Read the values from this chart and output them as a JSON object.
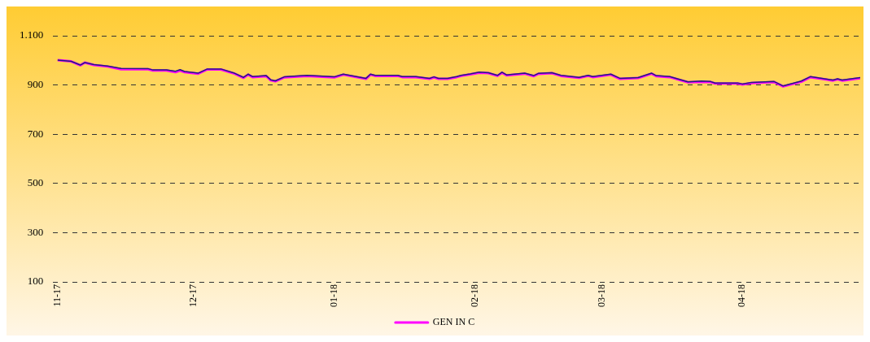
{
  "chart_data": {
    "type": "line",
    "x": [
      "2017-11-01",
      "2017-11-04",
      "2017-11-06",
      "2017-11-07",
      "2017-11-09",
      "2017-11-12",
      "2017-11-15",
      "2017-11-21",
      "2017-11-22",
      "2017-11-25",
      "2017-11-27",
      "2017-11-28",
      "2017-11-29",
      "2017-12-02",
      "2017-12-04",
      "2017-12-07",
      "2017-12-10",
      "2017-12-12",
      "2017-12-13",
      "2017-12-14",
      "2017-12-17",
      "2017-12-18",
      "2017-12-19",
      "2017-12-21",
      "2017-12-26",
      "2018-01-01",
      "2018-01-03",
      "2018-01-08",
      "2018-01-09",
      "2018-01-10",
      "2018-01-15",
      "2018-01-16",
      "2018-01-19",
      "2018-01-22",
      "2018-01-23",
      "2018-01-24",
      "2018-01-26",
      "2018-01-28",
      "2018-01-29",
      "2018-01-31",
      "2018-02-02",
      "2018-02-04",
      "2018-02-06",
      "2018-02-07",
      "2018-02-08",
      "2018-02-12",
      "2018-02-14",
      "2018-02-15",
      "2018-02-18",
      "2018-02-20",
      "2018-02-24",
      "2018-02-26",
      "2018-02-27",
      "2018-03-03",
      "2018-03-05",
      "2018-03-09",
      "2018-03-12",
      "2018-03-13",
      "2018-03-16",
      "2018-03-20",
      "2018-03-23",
      "2018-03-25",
      "2018-03-26",
      "2018-03-31",
      "2018-04-01",
      "2018-04-03",
      "2018-04-08",
      "2018-04-10",
      "2018-04-14",
      "2018-04-16",
      "2018-04-21",
      "2018-04-22",
      "2018-04-23",
      "2018-04-27"
    ],
    "series": [
      {
        "color": "#1f1f7a",
        "values": [
          1001,
          996,
          981,
          991,
          983,
          977,
          967,
          966,
          961,
          961,
          956,
          962,
          955,
          948,
          965,
          965,
          948,
          931,
          944,
          934,
          938,
          921,
          917,
          933,
          939,
          933,
          944,
          927,
          944,
          939,
          939,
          934,
          934,
          927,
          933,
          927,
          927,
          934,
          939,
          945,
          952,
          950,
          939,
          952,
          941,
          948,
          938,
          947,
          950,
          939,
          931,
          939,
          934,
          944,
          927,
          930,
          948,
          938,
          934,
          913,
          916,
          914,
          908,
          908,
          904,
          910,
          914,
          896,
          916,
          934,
          920,
          925,
          920,
          930
        ]
      },
      {
        "name": "GEN IN C",
        "color": "#ff00ff",
        "values": [
          1001,
          996,
          980,
          991,
          981,
          975,
          964,
          964,
          959,
          959,
          952,
          959,
          952,
          946,
          963,
          963,
          946,
          929,
          942,
          932,
          936,
          919,
          915,
          931,
          937,
          931,
          942,
          925,
          942,
          937,
          937,
          932,
          932,
          925,
          931,
          925,
          925,
          932,
          937,
          943,
          950,
          948,
          937,
          950,
          939,
          946,
          936,
          945,
          948,
          937,
          929,
          937,
          932,
          942,
          925,
          928,
          946,
          936,
          932,
          911,
          913,
          912,
          906,
          906,
          902,
          908,
          912,
          894,
          913,
          932,
          918,
          923,
          918,
          928
        ]
      }
    ],
    "xlim": [
      "2017-10-31",
      "2018-04-27"
    ],
    "xticks": [
      {
        "value": "2017-11-01",
        "label": "11-17"
      },
      {
        "value": "2017-12-01",
        "label": "12-17"
      },
      {
        "value": "2018-01-01",
        "label": "01-18"
      },
      {
        "value": "2018-02-01",
        "label": "02-18"
      },
      {
        "value": "2018-03-01",
        "label": "03-18"
      },
      {
        "value": "2018-04-01",
        "label": "04-18"
      }
    ],
    "ylim": [
      100,
      1100
    ],
    "yticks": [
      100,
      300,
      500,
      700,
      900,
      {
        "value": 1100,
        "label": "1.100"
      }
    ],
    "grid": "y",
    "legend": "bottom",
    "marker": "none",
    "line_style": "solid"
  }
}
